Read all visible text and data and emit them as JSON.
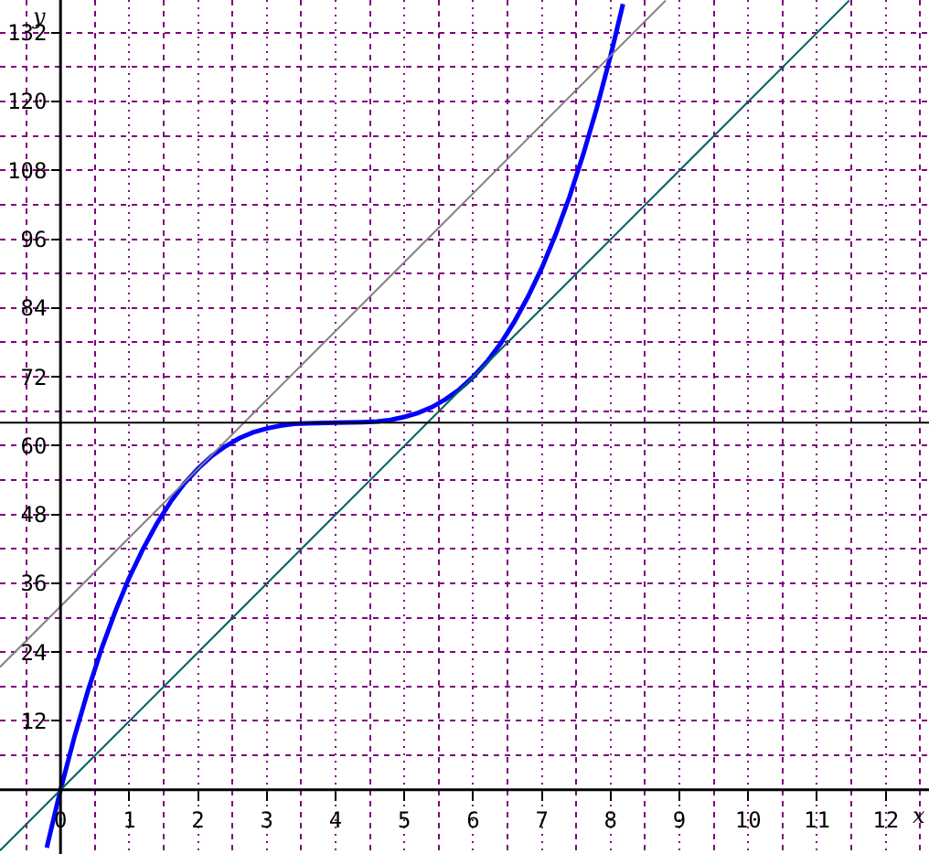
{
  "chart_data": {
    "type": "line",
    "xlabel": "x",
    "ylabel": "y",
    "xlim": [
      -0.88,
      12.63
    ],
    "ylim": [
      -11.2,
      137.7
    ],
    "xticks": [
      0,
      1,
      2,
      3,
      4,
      5,
      6,
      7,
      8,
      9,
      10,
      11,
      12
    ],
    "yticks": [
      12,
      24,
      36,
      48,
      60,
      72,
      84,
      96,
      108,
      120,
      132
    ],
    "grid": true,
    "marker": "none",
    "line_style": "solid",
    "series": [
      {
        "color": "#0000ff",
        "x": [
          -0.2,
          0,
          0.2,
          0.4,
          0.6,
          0.8,
          1,
          1.2,
          1.4,
          1.6,
          1.8,
          2,
          2.2,
          2.4,
          2.6,
          2.8,
          3,
          3.2,
          3.4,
          3.6,
          4,
          4.4,
          4.6,
          4.8,
          5,
          5.2,
          5.4,
          5.6,
          5.8,
          6,
          6.2,
          6.4,
          6.6,
          6.8,
          7,
          7.2,
          7.4,
          7.6,
          7.8,
          8,
          8.18
        ],
        "values": [
          -10.1,
          0,
          9.1,
          17.3,
          24.7,
          31.2,
          37,
          42,
          46.4,
          50.2,
          53.4,
          56,
          58.2,
          59.9,
          61.3,
          62.3,
          63,
          63.5,
          63.8,
          63.9,
          64,
          64.1,
          64.2,
          64.5,
          65,
          65.7,
          66.7,
          68.1,
          69.8,
          72,
          74.6,
          77.8,
          81.6,
          86,
          91,
          96.8,
          103.3,
          110.7,
          118.9,
          128,
          137
        ]
      },
      {
        "color": "#808080",
        "x": [
          -0.88,
          8.8
        ],
        "values": [
          21.4,
          137.6
        ]
      },
      {
        "color": "#006060",
        "x": [
          -0.88,
          11.47
        ],
        "values": [
          -10.6,
          137.6
        ]
      }
    ],
    "ref_lines": [
      {
        "axis": "y",
        "value": 64,
        "color": "#000000",
        "line_style": "solid"
      }
    ]
  }
}
